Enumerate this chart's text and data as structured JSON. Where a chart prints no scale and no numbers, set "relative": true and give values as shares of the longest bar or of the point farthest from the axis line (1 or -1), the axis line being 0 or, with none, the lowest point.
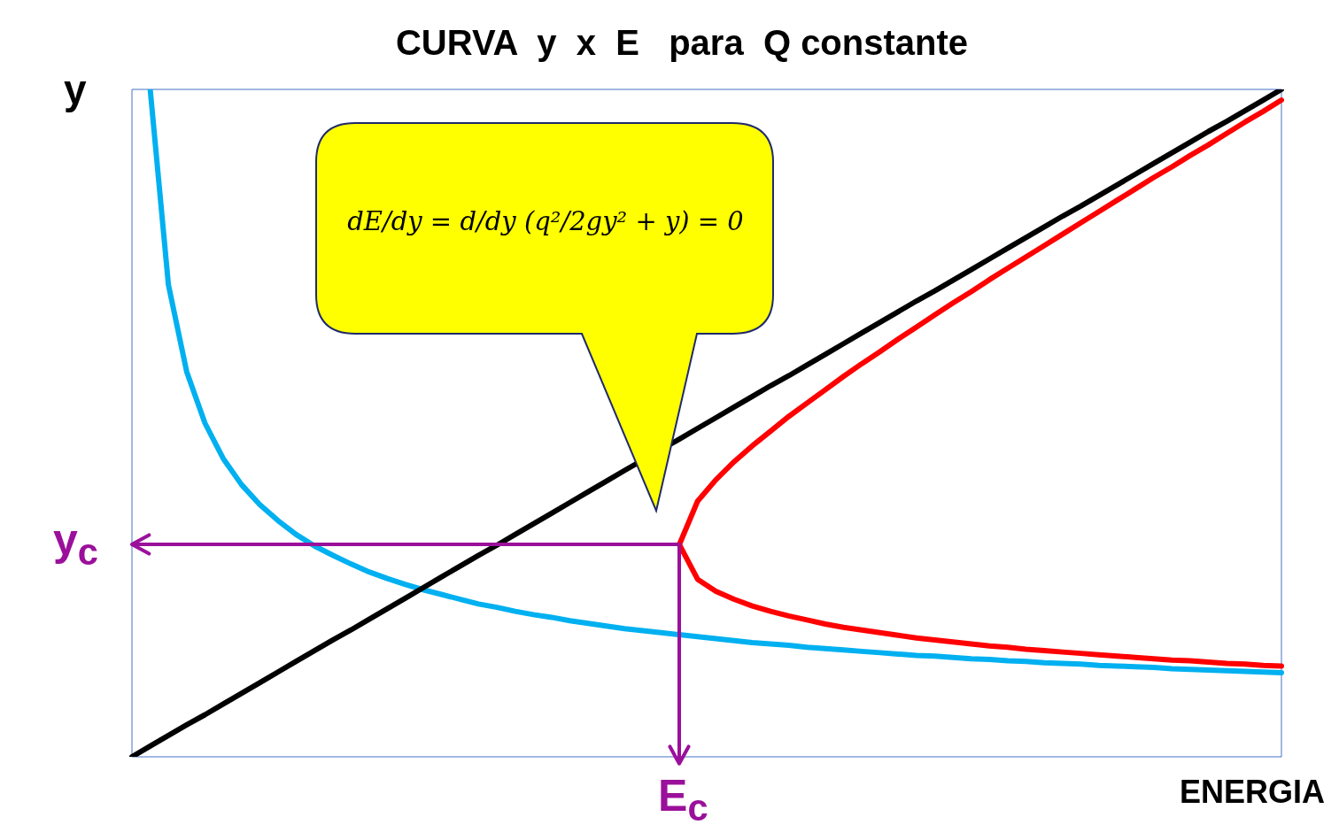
{
  "chart_data": {
    "type": "line",
    "title": "CURVA  y  x  E   para  Q constante",
    "xlabel": "ENERGIA",
    "ylabel": "y",
    "relative": true,
    "legend": false,
    "marker": "none",
    "line_style": "solid",
    "annotations": [
      "dE/dy = d/dy (q²/2gy² + y) = 0",
      "y$_{c}$",
      "E$_{c}$"
    ],
    "categories": [
      null,
      null,
      null,
      null,
      null,
      null,
      null,
      null,
      null,
      null,
      null,
      null,
      null,
      null,
      null,
      null,
      null,
      null,
      null,
      null,
      null,
      null,
      null,
      null,
      null,
      null,
      null,
      null,
      null,
      null,
      null,
      null,
      null,
      null,
      null,
      null,
      null,
      null,
      null,
      null,
      null,
      null,
      null,
      null,
      null,
      null,
      null,
      null,
      null,
      null,
      null,
      null,
      null,
      null,
      null,
      null,
      null,
      null,
      null,
      null,
      null,
      null,
      null,
      null
    ],
    "series": [
      {
        "color": "#000000",
        "values": [
          0,
          0.016,
          0.032,
          0.048,
          0.063,
          0.079,
          0.095,
          0.111,
          0.127,
          0.143,
          0.159,
          0.175,
          0.19,
          0.206,
          0.222,
          0.238,
          0.254,
          0.27,
          0.286,
          0.302,
          0.317,
          0.333,
          0.349,
          0.365,
          0.381,
          0.397,
          0.413,
          0.429,
          null,
          null,
          0.476,
          0.492,
          0.508,
          0.524,
          0.54,
          0.556,
          0.571,
          0.587,
          0.603,
          0.619,
          0.635,
          0.651,
          0.667,
          0.683,
          0.698,
          0.714,
          0.73,
          0.746,
          0.762,
          0.778,
          0.794,
          0.81,
          0.825,
          0.841,
          0.857,
          0.873,
          0.889,
          0.905,
          0.921,
          0.937,
          0.952,
          0.968,
          0.984,
          1
        ]
      },
      {
        "color": "#00b0f0",
        "values": [
          null,
          1,
          0.707,
          0.577,
          0.5,
          0.447,
          0.408,
          0.378,
          0.354,
          0.333,
          0.316,
          0.302,
          0.289,
          0.277,
          0.267,
          0.258,
          0.25,
          0.243,
          0.236,
          0.229,
          0.224,
          0.218,
          0.213,
          0.209,
          0.204,
          0.2,
          0.196,
          0.192,
          0.189,
          0.186,
          0.183,
          0.18,
          0.177,
          0.174,
          0.171,
          0.169,
          0.167,
          0.164,
          0.162,
          0.16,
          0.158,
          0.156,
          0.154,
          0.152,
          0.151,
          0.149,
          0.147,
          0.146,
          0.144,
          0.143,
          0.141,
          0.14,
          0.139,
          0.137,
          0.136,
          0.135,
          0.134,
          0.132,
          0.131,
          0.13,
          0.129,
          0.128,
          0.127,
          0.126
        ]
      },
      {
        "color": "#ff0000",
        "values": [
          null,
          null,
          null,
          null,
          null,
          null,
          null,
          null,
          null,
          null,
          null,
          null,
          null,
          null,
          null,
          null,
          null,
          null,
          null,
          null,
          null,
          null,
          null,
          null,
          null,
          null,
          null,
          null,
          null,
          null,
          0.318,
          0.383,
          0.415,
          0.442,
          0.466,
          0.488,
          0.51,
          0.53,
          0.55,
          0.57,
          0.589,
          0.607,
          0.626,
          0.644,
          0.662,
          0.68,
          0.697,
          0.715,
          0.732,
          0.749,
          0.766,
          0.783,
          0.8,
          0.817,
          0.834,
          0.851,
          0.868,
          0.884,
          0.901,
          0.917,
          0.934,
          0.951,
          0.967,
          0.984
        ]
      },
      {
        "color": "#ff0000",
        "values": [
          null,
          null,
          null,
          null,
          null,
          null,
          null,
          null,
          null,
          null,
          null,
          null,
          null,
          null,
          null,
          null,
          null,
          null,
          null,
          null,
          null,
          null,
          null,
          null,
          null,
          null,
          null,
          null,
          null,
          null,
          0.318,
          0.266,
          0.248,
          0.236,
          0.226,
          0.218,
          0.211,
          0.205,
          0.199,
          0.194,
          0.19,
          0.186,
          0.182,
          0.178,
          0.175,
          0.172,
          0.169,
          0.166,
          0.164,
          0.161,
          0.159,
          0.157,
          0.155,
          0.153,
          0.151,
          0.149,
          0.147,
          0.145,
          0.144,
          0.142,
          0.14,
          0.139,
          0.137,
          0.136
        ]
      }
    ]
  }
}
